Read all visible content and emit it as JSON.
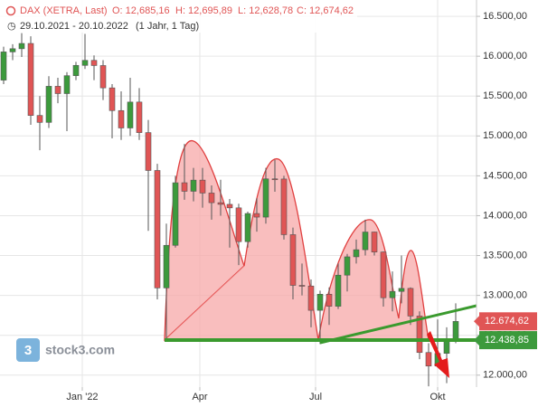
{
  "chart_data": {
    "type": "candlestick",
    "header": [
      "DAX (XETRA, Last)",
      "O: 12,685,16",
      "H: 12,695,89",
      "L: 12,628,78",
      "C: 12,674,62"
    ],
    "subtitle": "29.10.2021 - 20.10.2022",
    "period": "(1 Jahr, 1 Tag)",
    "watermark": "stock3.com",
    "x": [
      0,
      1,
      2,
      3,
      4,
      5,
      6,
      7,
      8,
      9,
      10,
      11,
      12,
      13,
      14,
      15,
      16,
      17,
      18,
      19,
      20,
      21,
      22,
      23,
      24,
      25,
      26,
      27,
      28,
      29,
      30,
      31,
      32,
      33,
      34,
      35,
      36,
      37,
      38,
      39,
      40,
      41,
      42,
      43,
      44,
      45,
      46,
      47,
      48,
      49,
      50
    ],
    "open": [
      15700,
      16054,
      16094,
      16160,
      15257,
      15170,
      15623,
      15531,
      15756,
      15885,
      15948,
      15883,
      15603,
      15318,
      15100,
      15425,
      15042,
      14567,
      13094,
      13628,
      14413,
      14306,
      14446,
      14284,
      14163,
      14142,
      14098,
      13674,
      14027,
      13982,
      14462,
      14460,
      13762,
      13126,
      13118,
      12813,
      13015,
      12864,
      13254,
      13484,
      13573,
      13795,
      13544,
      12971,
      13050,
      13088,
      12741,
      12284,
      12114,
      12273,
      12438
    ],
    "high": [
      16120,
      16150,
      16290,
      16250,
      15500,
      15750,
      15730,
      15800,
      15930,
      16280,
      16010,
      15950,
      15650,
      15560,
      15730,
      15600,
      15200,
      14650,
      13900,
      14500,
      14900,
      14600,
      14600,
      14380,
      14450,
      14210,
      14150,
      14050,
      14220,
      14600,
      14700,
      14500,
      13850,
      13400,
      13200,
      13060,
      13100,
      13400,
      13520,
      13700,
      13950,
      13800,
      13550,
      13300,
      13500,
      13100,
      12800,
      12400,
      12700,
      12600,
      12900
    ],
    "low": [
      15650,
      15950,
      15990,
      15140,
      14820,
      15100,
      15410,
      15060,
      15700,
      15840,
      15700,
      15450,
      14970,
      14950,
      15000,
      14950,
      13810,
      12950,
      12440,
      13600,
      14200,
      14180,
      14100,
      13950,
      14000,
      13600,
      13380,
      13600,
      13800,
      13900,
      14300,
      13700,
      12950,
      13000,
      12600,
      12390,
      12630,
      12830,
      13050,
      13400,
      13500,
      13500,
      12860,
      12800,
      12900,
      12630,
      12200,
      11860,
      12100,
      11900,
      12400
    ],
    "close": [
      16054,
      16094,
      16160,
      15257,
      15170,
      15623,
      15531,
      15756,
      15885,
      15948,
      15883,
      15603,
      15318,
      15100,
      15425,
      15042,
      14567,
      13094,
      13628,
      14413,
      14306,
      14446,
      14284,
      14163,
      14142,
      14098,
      13674,
      14027,
      13982,
      14462,
      14460,
      13762,
      13126,
      13118,
      12813,
      13015,
      12864,
      13254,
      13484,
      13573,
      13795,
      13544,
      12971,
      13050,
      13088,
      12741,
      12284,
      12114,
      12273,
      12438,
      12674
    ],
    "up_color": "#3c9a3c",
    "down_color": "#e05555",
    "xlim": [
      -0.4,
      52.3
    ],
    "xticks": [
      {
        "value": 8.7,
        "label": "Jan '22"
      },
      {
        "value": 21.7,
        "label": "Apr"
      },
      {
        "value": 34.5,
        "label": "Jul"
      },
      {
        "value": 48,
        "label": "Okt"
      }
    ],
    "ylim": [
      11850,
      16705
    ],
    "yticks": [
      {
        "value": 12000,
        "label": "12.000,00"
      },
      {
        "value": 12500,
        "label": "12.500,00"
      },
      {
        "value": 13000,
        "label": "13.000,00"
      },
      {
        "value": 13500,
        "label": "13.500,00"
      },
      {
        "value": 14000,
        "label": "14.000,00"
      },
      {
        "value": 14500,
        "label": "14.500,00"
      },
      {
        "value": 15000,
        "label": "15.000,00"
      },
      {
        "value": 15500,
        "label": "15.500,00"
      },
      {
        "value": 16000,
        "label": "16.000,00"
      },
      {
        "value": 16500,
        "label": "16.500,00"
      }
    ],
    "grid": true,
    "price_tags": [
      {
        "value": 12674.62,
        "label": "12.674,62",
        "color": "#e05555"
      },
      {
        "value": 12438.85,
        "label": "12.438,85",
        "color": "#3c9a3c"
      }
    ]
  }
}
